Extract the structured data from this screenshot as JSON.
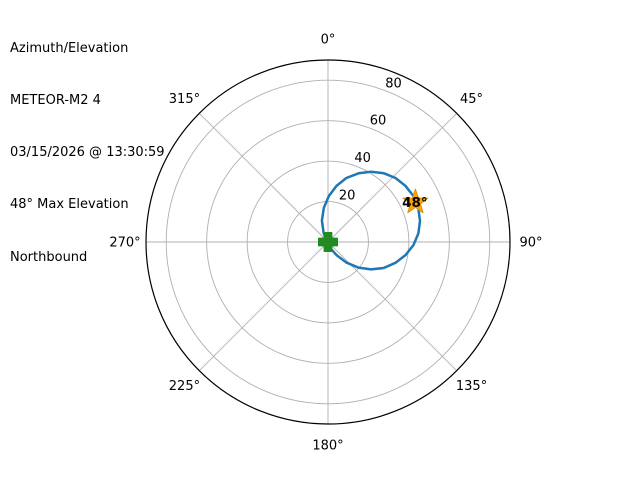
{
  "header": {
    "lines": [
      "Azimuth/Elevation",
      "METEOR-M2 4",
      "03/15/2026 @ 13:30:59",
      "48° Max Elevation",
      "Northbound"
    ]
  },
  "chart_data": {
    "type": "polar",
    "title": "Azimuth/Elevation",
    "satellite": "METEOR-M2 4",
    "pass_time": "03/15/2026 @ 13:30:59",
    "max_elevation_deg": 48,
    "direction": "Northbound",
    "angle_unit": "degrees azimuth, 0=N clockwise",
    "radial_unit": "degrees elevation, 0 at center",
    "radial_max": 90,
    "azimuth_ticks": [
      {
        "deg": 0,
        "label": "0°"
      },
      {
        "deg": 45,
        "label": "45°"
      },
      {
        "deg": 90,
        "label": "90°"
      },
      {
        "deg": 135,
        "label": "135°"
      },
      {
        "deg": 180,
        "label": "180°"
      },
      {
        "deg": 225,
        "label": "225°"
      },
      {
        "deg": 270,
        "label": "270°"
      },
      {
        "deg": 315,
        "label": "315°"
      }
    ],
    "elevation_rings": [
      {
        "deg": 20,
        "label": "20"
      },
      {
        "deg": 40,
        "label": "40"
      },
      {
        "deg": 60,
        "label": "60"
      },
      {
        "deg": 80,
        "label": "80"
      }
    ],
    "ring_label_azimuth_deg": 22.5,
    "grid_color": "#b0b0b0",
    "outline_color": "#000000",
    "track": {
      "name": "satellite-pass-track",
      "color": "#1f77b4",
      "points_az_el": [
        [
          170,
          0
        ],
        [
          158,
          3.5
        ],
        [
          147,
          7.7
        ],
        [
          138,
          13.8
        ],
        [
          130,
          19.7
        ],
        [
          122.5,
          25.2
        ],
        [
          115,
          30.4
        ],
        [
          107,
          35.0
        ],
        [
          99.5,
          38.9
        ],
        [
          92,
          42.3
        ],
        [
          84.5,
          44.9
        ],
        [
          77,
          46.7
        ],
        [
          69,
          47.8
        ],
        [
          62,
          48.0
        ],
        [
          54,
          47.3
        ],
        [
          46.5,
          46.0
        ],
        [
          39,
          43.8
        ],
        [
          31.5,
          40.8
        ],
        [
          24,
          37.2
        ],
        [
          16,
          32.9
        ],
        [
          8.5,
          28.0
        ],
        [
          1,
          22.7
        ],
        [
          353,
          17.0
        ],
        [
          344,
          11.0
        ],
        [
          334,
          4.8
        ],
        [
          324,
          1.5
        ],
        [
          315,
          0
        ]
      ]
    },
    "markers": [
      {
        "name": "current-position-marker",
        "shape": "plus",
        "az": 170,
        "el": 0,
        "fill": "#228b22",
        "edge": "#228b22"
      },
      {
        "name": "max-elevation-marker",
        "shape": "star",
        "az": 65.5,
        "el": 47.5,
        "fill": "#ffa500",
        "edge": "#d98c10",
        "label": "48°",
        "label_color": "#000000"
      }
    ]
  }
}
